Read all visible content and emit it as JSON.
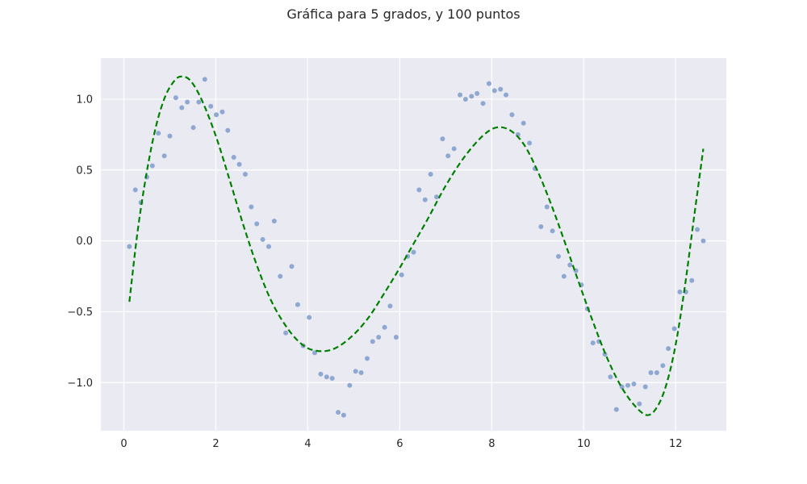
{
  "chart_data": {
    "type": "scatter",
    "title": "Gráfica para 5 grados, y 100 puntos",
    "xlabel": "",
    "ylabel": "",
    "xlim": [
      -0.5,
      13.1
    ],
    "ylim": [
      -1.34,
      1.29
    ],
    "xticks": [
      0,
      2,
      4,
      6,
      8,
      10,
      12
    ],
    "xtick_labels": [
      "0",
      "2",
      "4",
      "6",
      "8",
      "10",
      "12"
    ],
    "yticks": [
      -1.0,
      -0.5,
      0.0,
      0.5,
      1.0
    ],
    "ytick_labels": [
      "−1.0",
      "−0.5",
      "0.0",
      "0.5",
      "1.0"
    ],
    "grid": true,
    "colors": {
      "axes_background": "#eaeaf2",
      "grid": "#ffffff",
      "points": "#8fa8d2",
      "fit_line": "#008000"
    },
    "series": [
      {
        "type": "scatter",
        "x": [
          0.12,
          0.25,
          0.37,
          0.5,
          0.62,
          0.75,
          0.88,
          1.0,
          1.13,
          1.26,
          1.38,
          1.51,
          1.63,
          1.76,
          1.89,
          2.01,
          2.14,
          2.26,
          2.39,
          2.51,
          2.64,
          2.77,
          2.89,
          3.02,
          3.15,
          3.27,
          3.4,
          3.52,
          3.65,
          3.78,
          3.9,
          4.03,
          4.15,
          4.28,
          4.41,
          4.53,
          4.66,
          4.78,
          4.91,
          5.04,
          5.16,
          5.29,
          5.41,
          5.54,
          5.67,
          5.79,
          5.92,
          6.04,
          6.17,
          6.3,
          6.42,
          6.55,
          6.67,
          6.8,
          6.93,
          7.05,
          7.18,
          7.31,
          7.43,
          7.56,
          7.68,
          7.81,
          7.94,
          8.06,
          8.19,
          8.31,
          8.44,
          8.57,
          8.69,
          8.82,
          8.94,
          9.07,
          9.2,
          9.32,
          9.45,
          9.57,
          9.7,
          9.83,
          9.95,
          10.08,
          10.2,
          10.33,
          10.46,
          10.58,
          10.71,
          10.83,
          10.96,
          11.09,
          11.21,
          11.34,
          11.46,
          11.59,
          11.72,
          11.84,
          11.97,
          12.09,
          12.22,
          12.35,
          12.47,
          12.6
        ],
        "y": [
          -0.04,
          0.36,
          0.27,
          0.45,
          0.53,
          0.76,
          0.6,
          0.74,
          1.01,
          0.94,
          0.98,
          0.8,
          0.98,
          1.14,
          0.95,
          0.89,
          0.91,
          0.78,
          0.59,
          0.54,
          0.47,
          0.24,
          0.12,
          0.01,
          -0.04,
          0.14,
          -0.25,
          -0.65,
          -0.18,
          -0.45,
          -0.74,
          -0.54,
          -0.79,
          -0.94,
          -0.96,
          -0.97,
          -1.21,
          -1.23,
          -1.02,
          -0.92,
          -0.93,
          -0.83,
          -0.71,
          -0.68,
          -0.61,
          -0.46,
          -0.68,
          -0.24,
          -0.11,
          -0.08,
          0.36,
          0.29,
          0.47,
          0.31,
          0.72,
          0.6,
          0.65,
          1.03,
          1.0,
          1.02,
          1.04,
          0.97,
          1.11,
          1.06,
          1.07,
          1.03,
          0.89,
          0.75,
          0.83,
          0.69,
          0.51,
          0.1,
          0.24,
          0.07,
          -0.11,
          -0.25,
          -0.17,
          -0.21,
          -0.31,
          -0.48,
          -0.72,
          -0.71,
          -0.8,
          -0.96,
          -1.19,
          -1.03,
          -1.02,
          -1.01,
          -1.15,
          -1.03,
          -0.93,
          -0.93,
          -0.88,
          -0.76,
          -0.62,
          -0.36,
          -0.36,
          -0.28,
          0.08,
          0.0
        ]
      },
      {
        "type": "line",
        "style": "dashed",
        "x": [
          0.12,
          0.3,
          0.5,
          0.7,
          0.9,
          1.1,
          1.25,
          1.45,
          1.7,
          2.0,
          2.3,
          2.6,
          2.9,
          3.2,
          3.5,
          3.8,
          4.1,
          4.5,
          4.9,
          5.3,
          5.7,
          6.0,
          6.3,
          6.6,
          7.0,
          7.4,
          7.8,
          8.1,
          8.4,
          8.7,
          9.0,
          9.3,
          9.6,
          9.9,
          10.2,
          10.5,
          10.8,
          11.1,
          11.38,
          11.6,
          11.8,
          12.0,
          12.2,
          12.4,
          12.6
        ],
        "y": [
          -0.43,
          0.07,
          0.49,
          0.81,
          1.02,
          1.13,
          1.16,
          1.13,
          0.99,
          0.74,
          0.43,
          0.11,
          -0.18,
          -0.42,
          -0.59,
          -0.71,
          -0.77,
          -0.77,
          -0.69,
          -0.55,
          -0.35,
          -0.19,
          -0.02,
          0.15,
          0.39,
          0.59,
          0.74,
          0.8,
          0.78,
          0.68,
          0.49,
          0.25,
          -0.02,
          -0.3,
          -0.57,
          -0.82,
          -1.02,
          -1.16,
          -1.23,
          -1.17,
          -1.01,
          -0.73,
          -0.32,
          0.17,
          0.65
        ]
      }
    ]
  }
}
